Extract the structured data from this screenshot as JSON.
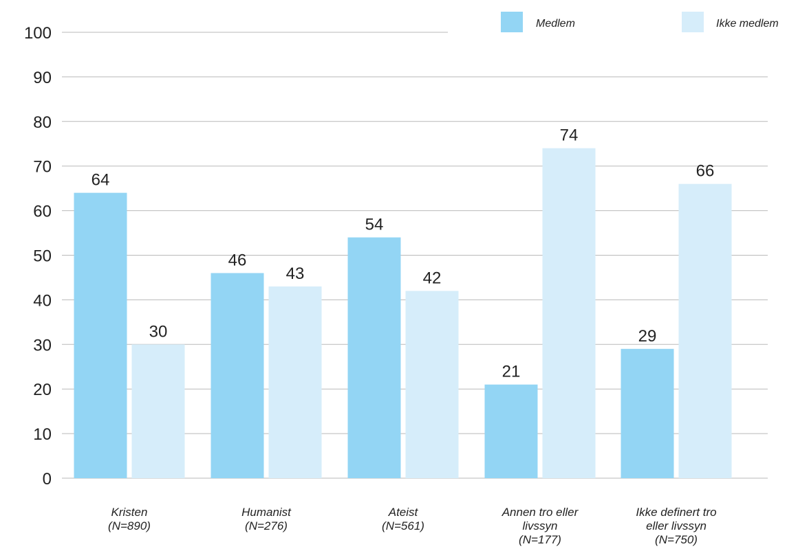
{
  "chart_data": {
    "type": "bar",
    "categories": [
      [
        "Kristen",
        "(N=890)"
      ],
      [
        "Humanist",
        "(N=276)"
      ],
      [
        "Ateist",
        "(N=561)"
      ],
      [
        "Annen tro eller",
        "livssyn",
        "(N=177)"
      ],
      [
        "Ikke definert tro",
        "eller livssyn",
        "(N=750)"
      ]
    ],
    "series": [
      {
        "name": "Medlem",
        "color": "#93d5f4",
        "values": [
          64,
          46,
          54,
          21,
          29
        ]
      },
      {
        "name": "Ikke medlem",
        "color": "#d6edfa",
        "values": [
          30,
          43,
          42,
          74,
          66
        ]
      }
    ],
    "ylim": [
      0,
      100
    ],
    "yticks": [
      0,
      10,
      20,
      30,
      40,
      50,
      60,
      70,
      80,
      90,
      100
    ],
    "grid": true,
    "legend_position": "top-right",
    "gridline_color": "#b9b9b9"
  }
}
